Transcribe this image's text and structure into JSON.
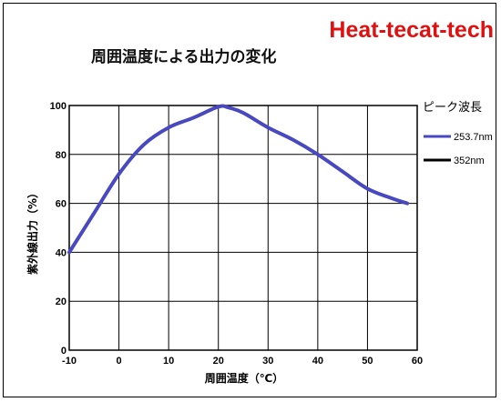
{
  "brand": {
    "text": "Heat-tecat-tech",
    "color": "#e01010"
  },
  "chart_data": {
    "type": "line",
    "title": "周囲温度による出力の変化",
    "xlabel": "周囲温度（℃）",
    "ylabel": "紫外線出力（%）",
    "xlim": [
      -10,
      60
    ],
    "ylim": [
      0,
      100
    ],
    "xticks": [
      -10,
      0,
      10,
      20,
      30,
      40,
      50,
      60
    ],
    "yticks": [
      0,
      20,
      40,
      60,
      80,
      100
    ],
    "grid": true,
    "legend": {
      "title": "ピーク波長",
      "placement": "right",
      "entries": [
        "253.7nm",
        "352nm"
      ]
    },
    "series": [
      {
        "name": "253.7nm",
        "color": "#4848c0",
        "x": [
          -10,
          -5,
          0,
          5,
          10,
          15,
          20,
          22,
          25,
          30,
          35,
          40,
          45,
          50,
          55,
          58
        ],
        "y": [
          40,
          56,
          72,
          84,
          91,
          95,
          99.5,
          99.2,
          97,
          91,
          86,
          80,
          73,
          66,
          62,
          60
        ]
      },
      {
        "name": "352nm",
        "color": "#000000",
        "x": [],
        "y": []
      }
    ]
  }
}
